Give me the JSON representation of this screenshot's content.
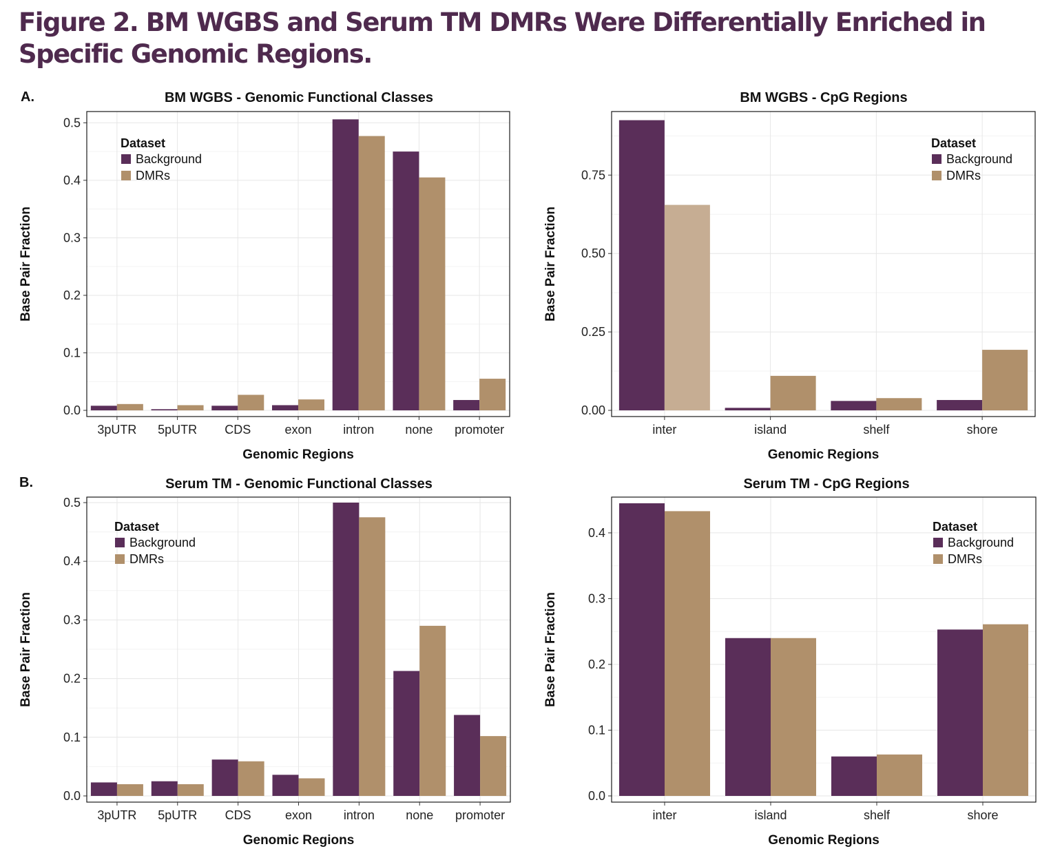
{
  "figure": {
    "title": "Figure 2. BM WGBS and Serum TM DMRs Were Differentially Enriched in Specific Genomic Regions.",
    "panel_a": "A.",
    "panel_b": "B."
  },
  "colors": {
    "background": "#5a2e59",
    "dmrs": "#b0906b",
    "dmrs_light": "#c6ad93"
  },
  "chart_data": [
    {
      "id": "a1",
      "type": "bar",
      "title": "BM WGBS - Genomic Functional Classes",
      "xlabel": "Genomic Regions",
      "ylabel": "Base Pair Fraction",
      "legend_title": "Dataset",
      "categories": [
        "3pUTR",
        "5pUTR",
        "CDS",
        "exon",
        "intron",
        "none",
        "promoter"
      ],
      "series": [
        {
          "name": "Background",
          "values": [
            0.008,
            0.002,
            0.008,
            0.009,
            0.506,
            0.45,
            0.018
          ]
        },
        {
          "name": "DMRs",
          "values": [
            0.011,
            0.009,
            0.027,
            0.019,
            0.477,
            0.405,
            0.055
          ]
        }
      ],
      "ylim": [
        0,
        0.51
      ],
      "yticks": [
        0,
        0.1,
        0.2,
        0.3,
        0.4,
        0.5
      ],
      "ytick_labels": [
        "0.0",
        "0.1",
        "0.2",
        "0.3",
        "0.4",
        "0.5"
      ],
      "legend_position": "top-left",
      "grid": true
    },
    {
      "id": "a2",
      "type": "bar",
      "title": "BM WGBS - CpG Regions",
      "xlabel": "Genomic Regions",
      "ylabel": "Base Pair Fraction",
      "legend_title": "Dataset",
      "categories": [
        "inter",
        "island",
        "shelf",
        "shore"
      ],
      "series": [
        {
          "name": "Background",
          "values": [
            0.925,
            0.008,
            0.03,
            0.033
          ]
        },
        {
          "name": "DMRs",
          "values": [
            0.655,
            0.11,
            0.039,
            0.193
          ]
        }
      ],
      "ylim": [
        0,
        0.935
      ],
      "yticks": [
        0,
        0.25,
        0.5,
        0.75
      ],
      "ytick_labels": [
        "0.00",
        "0.25",
        "0.50",
        "0.75"
      ],
      "legend_position": "top-right",
      "grid": true
    },
    {
      "id": "b1",
      "type": "bar",
      "title": "Serum TM - Genomic Functional Classes",
      "xlabel": "Genomic Regions",
      "ylabel": "Base Pair Fraction",
      "legend_title": "Dataset",
      "categories": [
        "3pUTR",
        "5pUTR",
        "CDS",
        "exon",
        "intron",
        "none",
        "promoter"
      ],
      "series": [
        {
          "name": "Background",
          "values": [
            0.023,
            0.025,
            0.062,
            0.036,
            0.5,
            0.213,
            0.138
          ]
        },
        {
          "name": "DMRs",
          "values": [
            0.02,
            0.02,
            0.059,
            0.03,
            0.475,
            0.29,
            0.102
          ]
        }
      ],
      "ylim": [
        0,
        0.5
      ],
      "yticks": [
        0,
        0.1,
        0.2,
        0.3,
        0.4,
        0.5
      ],
      "ytick_labels": [
        "0.0",
        "0.1",
        "0.2",
        "0.3",
        "0.4",
        "0.5"
      ],
      "legend_position": "top-left",
      "grid": true
    },
    {
      "id": "b2",
      "type": "bar",
      "title": "Serum TM - CpG Regions",
      "xlabel": "Genomic Regions",
      "ylabel": "Base Pair Fraction",
      "legend_title": "Dataset",
      "categories": [
        "inter",
        "island",
        "shelf",
        "shore"
      ],
      "series": [
        {
          "name": "Background",
          "values": [
            0.445,
            0.24,
            0.06,
            0.253
          ]
        },
        {
          "name": "DMRs",
          "values": [
            0.433,
            0.24,
            0.063,
            0.261
          ]
        }
      ],
      "ylim": [
        0,
        0.446
      ],
      "yticks": [
        0,
        0.1,
        0.2,
        0.3,
        0.4
      ],
      "ytick_labels": [
        "0.0",
        "0.1",
        "0.2",
        "0.3",
        "0.4"
      ],
      "legend_position": "top-right",
      "grid": true
    }
  ]
}
